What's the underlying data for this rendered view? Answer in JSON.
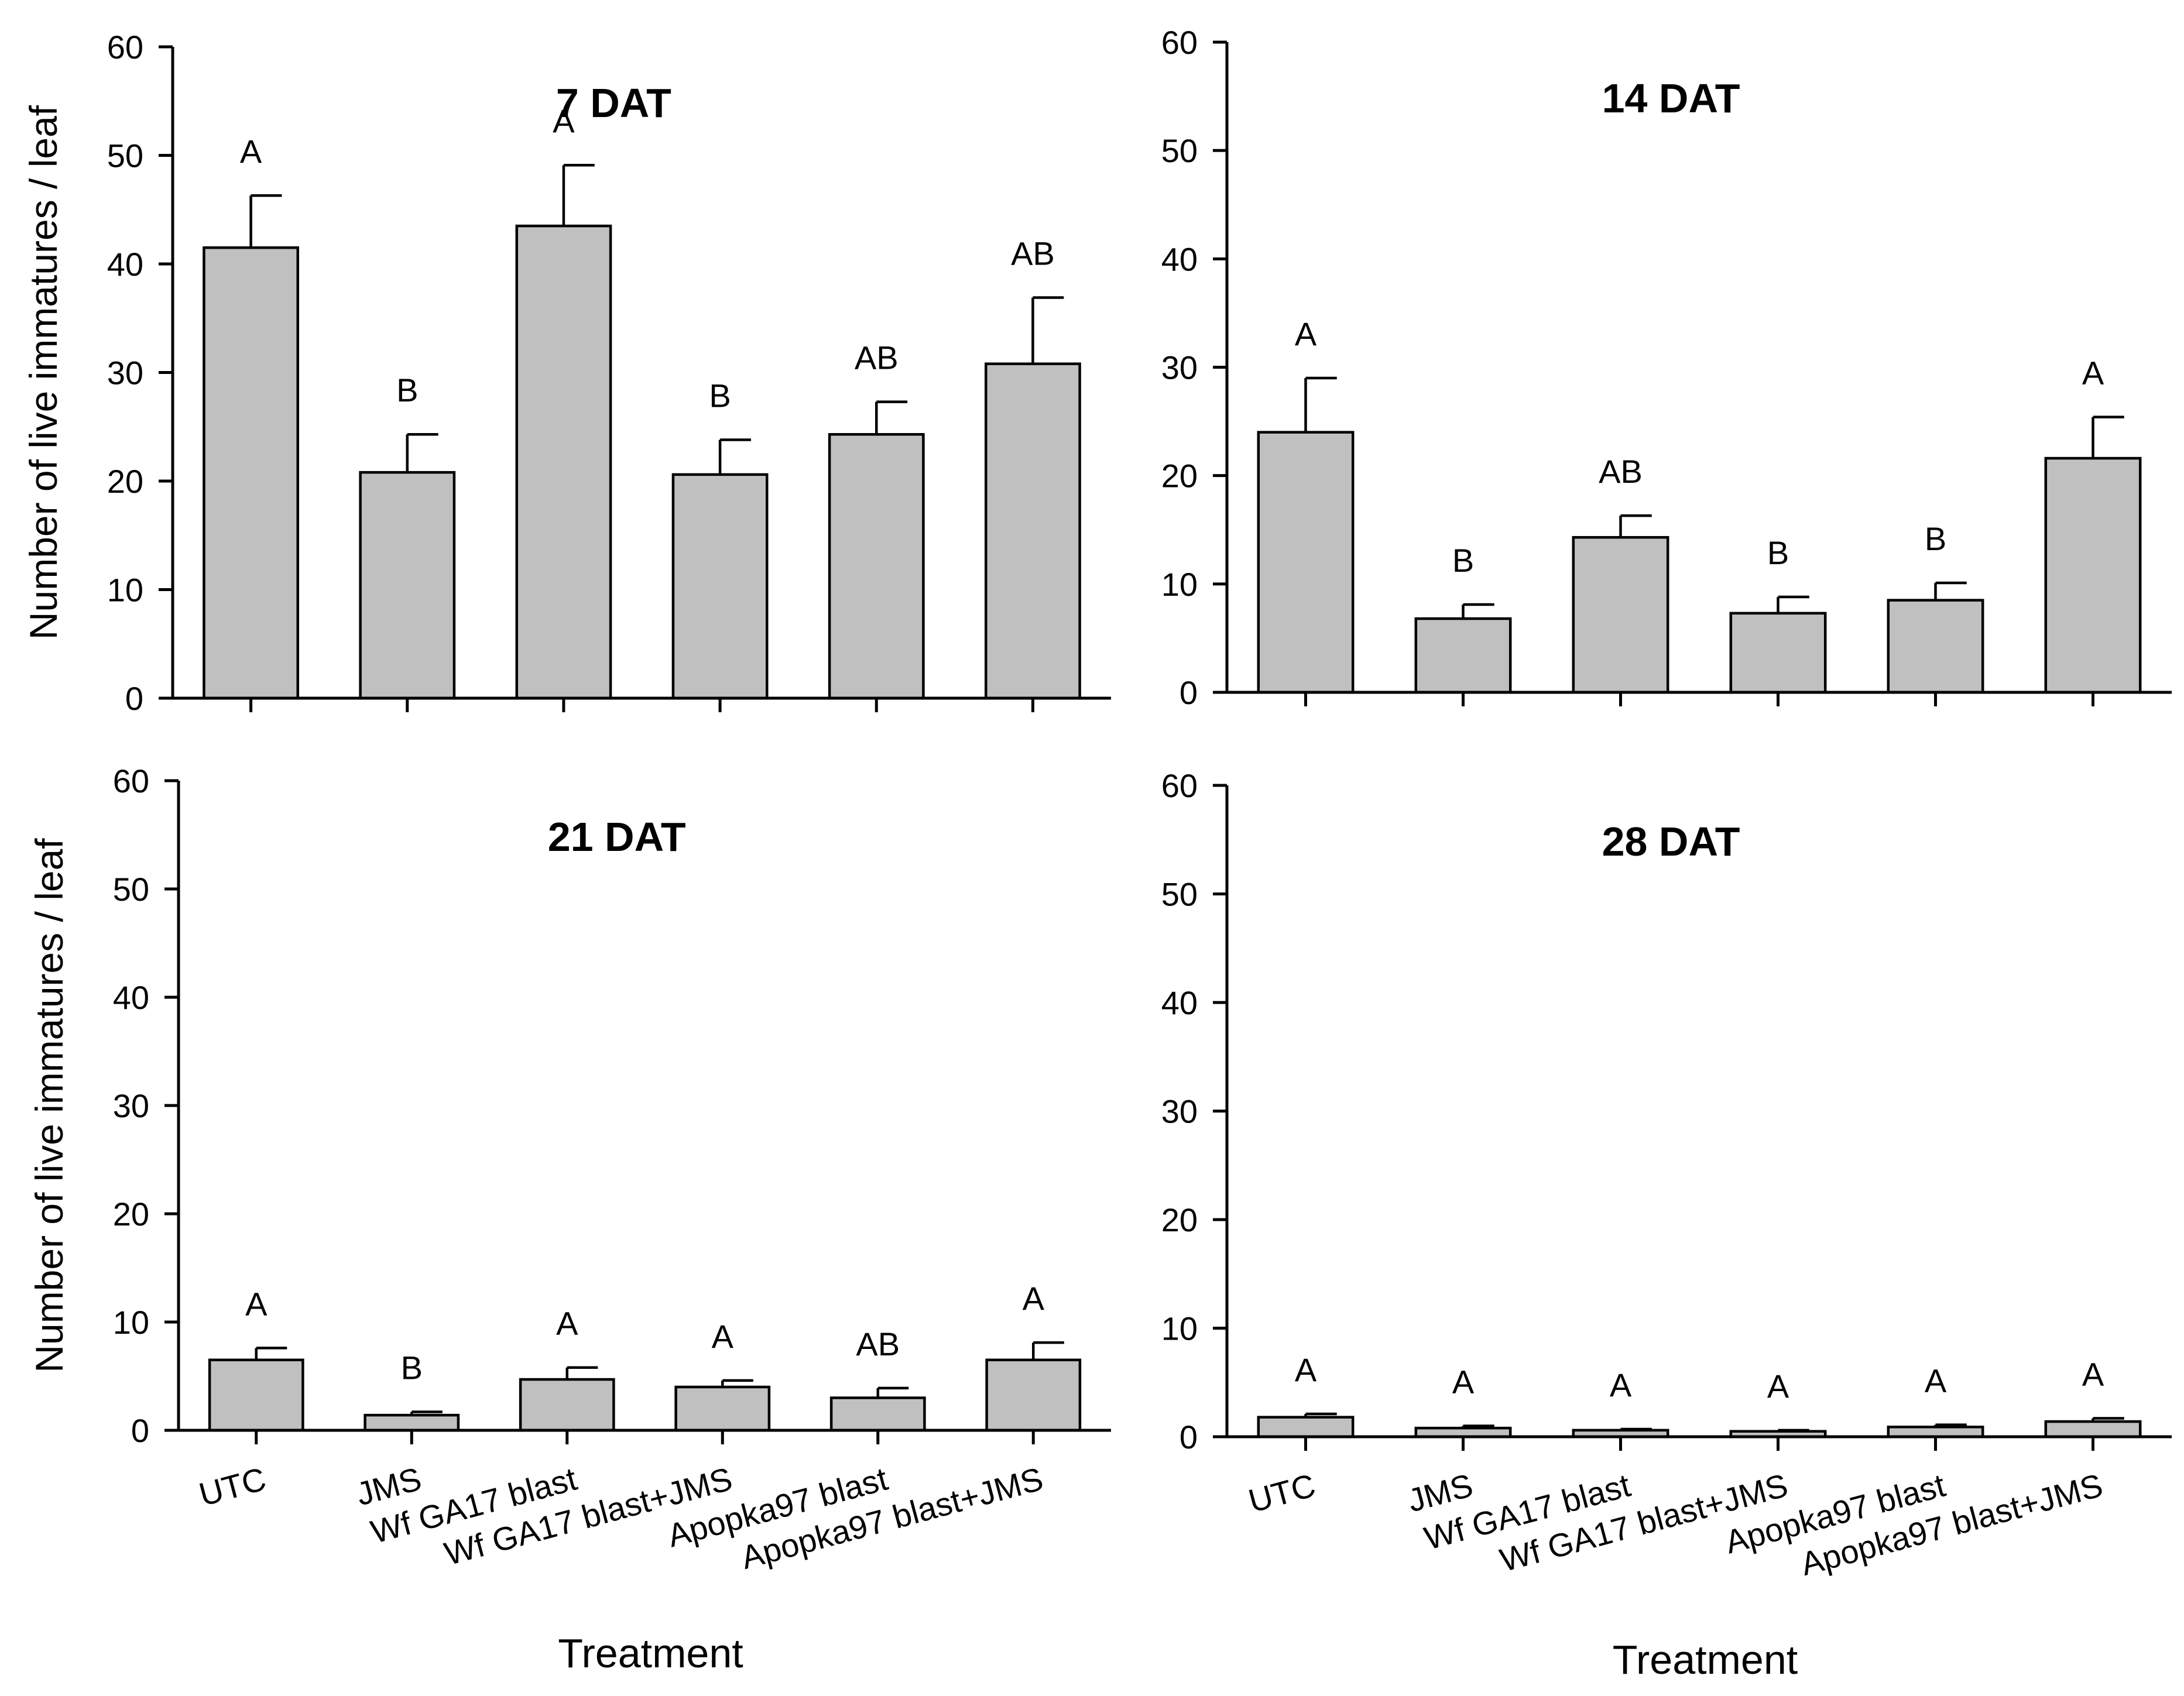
{
  "chart_data": [
    {
      "type": "bar",
      "title": "7 DAT",
      "xlabel": "",
      "ylabel": "Number of live immatures / leaf",
      "ylim": [
        0,
        60
      ],
      "yticks": [
        0,
        10,
        20,
        30,
        40,
        50,
        60
      ],
      "categories": [],
      "values": [
        41.5,
        20.8,
        43.5,
        20.6,
        24.3,
        30.8
      ],
      "errors": [
        4.8,
        3.5,
        5.6,
        3.2,
        3.0,
        6.1
      ],
      "labels": [
        "A",
        "B",
        "A",
        "B",
        "AB",
        "AB"
      ],
      "bar_color": "#c0c0c0"
    },
    {
      "type": "bar",
      "title": "14 DAT",
      "xlabel": "",
      "ylabel": "",
      "ylim": [
        0,
        60
      ],
      "yticks": [
        0,
        10,
        20,
        30,
        40,
        50,
        60
      ],
      "categories": [],
      "values": [
        24.0,
        6.8,
        14.3,
        7.3,
        8.5,
        21.6
      ],
      "errors": [
        5.0,
        1.3,
        2.0,
        1.5,
        1.6,
        3.8
      ],
      "labels": [
        "A",
        "B",
        "AB",
        "B",
        "B",
        "A"
      ],
      "bar_color": "#c0c0c0"
    },
    {
      "type": "bar",
      "title": "21 DAT",
      "xlabel": "Treatment",
      "ylabel": "Number of live immatures / leaf",
      "ylim": [
        0,
        60
      ],
      "yticks": [
        0,
        10,
        20,
        30,
        40,
        50,
        60
      ],
      "categories": [
        "UTC",
        "JMS",
        "Wf GA17 blast",
        "Wf GA17 blast+JMS",
        "Apopka97 blast",
        "Apopka97 blast+JMS"
      ],
      "values": [
        6.5,
        1.4,
        4.7,
        4.0,
        3.0,
        6.5
      ],
      "errors": [
        1.1,
        0.3,
        1.1,
        0.6,
        0.9,
        1.6
      ],
      "labels": [
        "A",
        "B",
        "A",
        "A",
        "AB",
        "A"
      ],
      "bar_color": "#c0c0c0"
    },
    {
      "type": "bar",
      "title": "28 DAT",
      "xlabel": "Treatment",
      "ylabel": "",
      "ylim": [
        0,
        60
      ],
      "yticks": [
        0,
        10,
        20,
        30,
        40,
        50,
        60
      ],
      "categories": [
        "UTC",
        "JMS",
        "Wf GA17 blast",
        "Wf GA17 blast+JMS",
        "Apopka97 blast",
        "Apopka97 blast+JMS"
      ],
      "values": [
        1.8,
        0.8,
        0.6,
        0.5,
        0.9,
        1.4
      ],
      "errors": [
        0.3,
        0.2,
        0.1,
        0.1,
        0.2,
        0.3
      ],
      "labels": [
        "A",
        "A",
        "A",
        "A",
        "A",
        "A"
      ],
      "bar_color": "#c0c0c0"
    }
  ]
}
